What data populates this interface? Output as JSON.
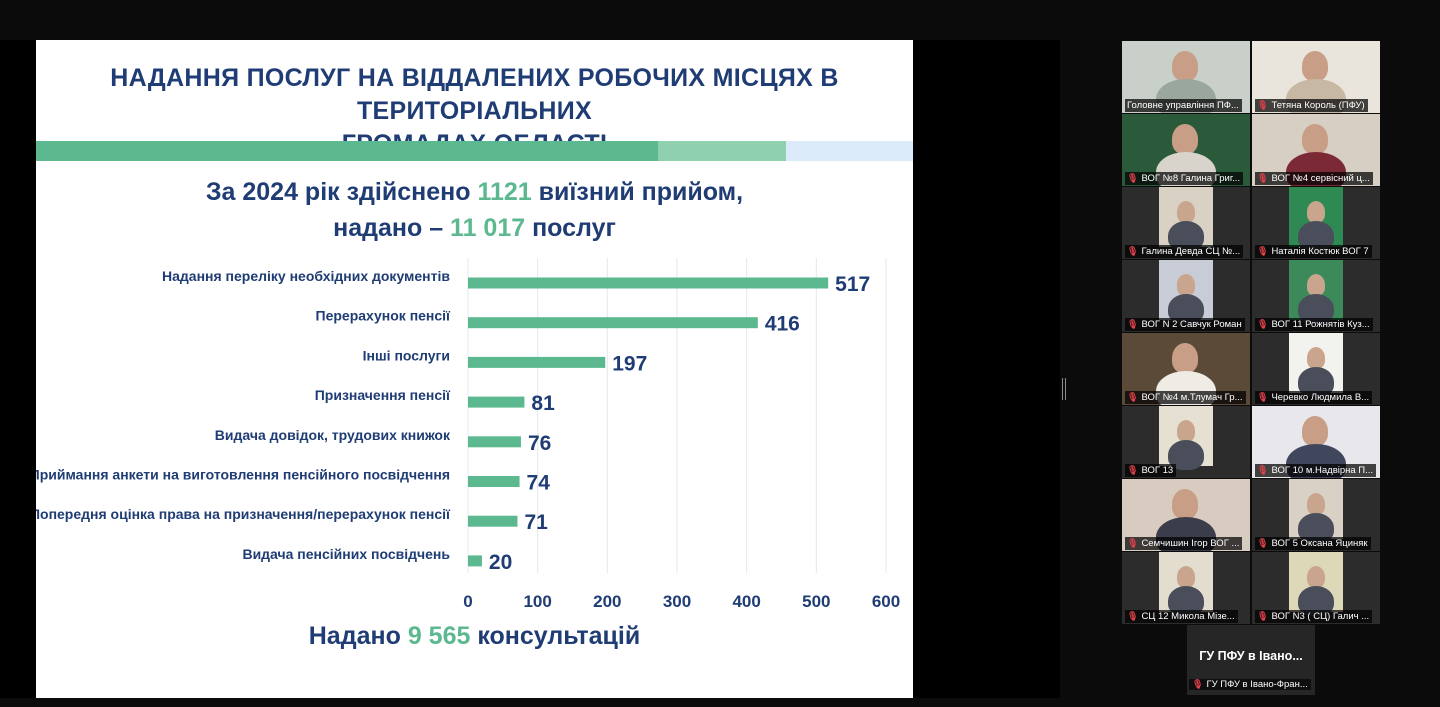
{
  "slide": {
    "title_line1": "НАДАННЯ ПОСЛУГ НА ВІДДАЛЕНИХ РОБОЧИХ МІСЦЯХ В ТЕРИТОРІАЛЬНИХ",
    "title_line2": "ГРОМАДАХ ОБЛАСТІ",
    "headline1": {
      "pre": "За 2024 рік здійснено ",
      "num": "1121",
      "post": " виїзний прийом,"
    },
    "headline2": {
      "pre": "надано – ",
      "num": "11 017",
      "post": " послуг"
    },
    "footer": {
      "pre": "Надано ",
      "num": "9 565",
      "post": " консультацій"
    },
    "colors": {
      "navy": "#1f3c74",
      "green": "#5cb98f",
      "band_green": "#5cb98f",
      "band_light": "#8fd0b1",
      "band_blue": "#dcebfa"
    }
  },
  "chart_data": {
    "type": "bar",
    "orientation": "horizontal",
    "categories": [
      "Надання переліку необхідних документів",
      "Перерахунок пенсії",
      "Інші послуги",
      "Призначення пенсії",
      "Видача довідок, трудових книжок",
      "Приймання анкети на виготовлення пенсійного посвідчення",
      "Попередня оцінка права на призначення/перерахунок пенсії",
      "Видача пенсійних посвідчень"
    ],
    "values": [
      517,
      416,
      197,
      81,
      76,
      74,
      71,
      20
    ],
    "xlim": [
      0,
      600
    ],
    "xticks": [
      "0",
      "100",
      "200",
      "300",
      "400",
      "500",
      "600"
    ],
    "grid": true,
    "color": "#5cb98f"
  },
  "participants": [
    {
      "name": "Головне управління ПФ...",
      "muted": false,
      "active": true
    },
    {
      "name": "Тетяна Король (ПФУ)",
      "muted": true
    },
    {
      "name": "ВОГ №8 Галина Григ...",
      "muted": true
    },
    {
      "name": "ВОГ №4 сервісний ц...",
      "muted": true
    },
    {
      "name": "Галина Девда СЦ №...",
      "muted": true
    },
    {
      "name": "Наталія  Костюк ВОГ 7",
      "muted": true
    },
    {
      "name": "ВОГ N 2 Савчук Роман",
      "muted": true
    },
    {
      "name": "ВОГ 11 Рожнятів Куз...",
      "muted": true
    },
    {
      "name": "ВОГ №4 м.Тлумач Гр...",
      "muted": true
    },
    {
      "name": "Черевко Людмила В...",
      "muted": true
    },
    {
      "name": "ВОГ 13",
      "muted": true
    },
    {
      "name": "ВОГ 10 м.Надвірна П...",
      "muted": true
    },
    {
      "name": "Семчишин Ігор ВОГ ...",
      "muted": true
    },
    {
      "name": "ВОГ 5 Оксана Яциняк",
      "muted": true
    },
    {
      "name": "СЦ 12  Микола Мізе...",
      "muted": true
    },
    {
      "name": "ВОГ N3  ( СЦ) Галич ...",
      "muted": true
    }
  ],
  "self_view": {
    "title": "ГУ ПФУ в Івано...",
    "caption": "ГУ ПФУ в Івано-Фран..."
  },
  "icons": {
    "mic_muted": "🎙"
  }
}
